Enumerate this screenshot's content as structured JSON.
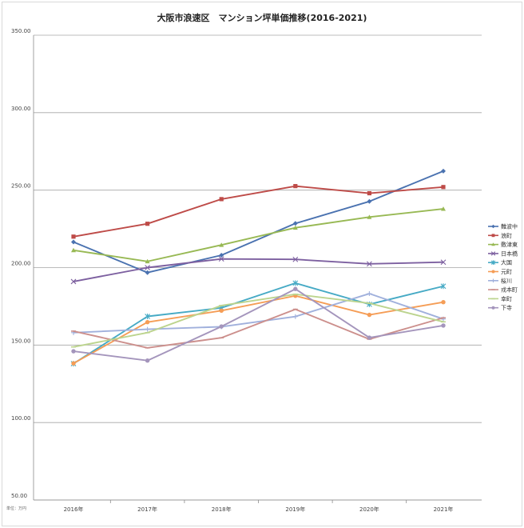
{
  "chart_data": {
    "type": "line",
    "title": "大阪市浪速区　マンション坪単価推移(2016-2021)",
    "unit_note": "単位：万円",
    "categories": [
      "2016年",
      "2017年",
      "2018年",
      "2019年",
      "2020年",
      "2021年"
    ],
    "ylim": [
      50,
      350
    ],
    "yticks": [
      "50.00",
      "100.00",
      "150.00",
      "200.00",
      "250.00",
      "300.00",
      "350.00"
    ],
    "ytick_values": [
      50,
      100,
      150,
      200,
      250,
      300,
      350
    ],
    "grid": true,
    "legend_position": "right",
    "series": [
      {
        "name": "難波中",
        "color": "#4a72b0",
        "marker": "diamond",
        "values": [
          216.5,
          196.8,
          208.0,
          228.5,
          242.7,
          262.3
        ]
      },
      {
        "name": "浪町",
        "color": "#be4b48",
        "marker": "square",
        "values": [
          220.0,
          228.3,
          244.2,
          252.6,
          248.0,
          252.0
        ]
      },
      {
        "name": "敷津東",
        "color": "#98b954",
        "marker": "triangle",
        "values": [
          211.2,
          204.0,
          214.6,
          225.7,
          232.6,
          237.9
        ]
      },
      {
        "name": "日本橋",
        "color": "#7d60a0",
        "marker": "x",
        "values": [
          191.0,
          200.0,
          205.6,
          205.3,
          202.4,
          203.5
        ]
      },
      {
        "name": "大国",
        "color": "#46aac5",
        "marker": "star",
        "values": [
          138.0,
          168.5,
          174.0,
          190.0,
          176.3,
          188.0
        ]
      },
      {
        "name": "元町",
        "color": "#f59d56",
        "marker": "circle",
        "values": [
          138.2,
          164.8,
          172.2,
          181.8,
          169.5,
          177.7
        ]
      },
      {
        "name": "桜川",
        "color": "#a0b0dc",
        "marker": "plus",
        "values": [
          158.0,
          160.2,
          161.8,
          168.4,
          183.2,
          166.8
        ]
      },
      {
        "name": "戎本町",
        "color": "#cc8f8c",
        "marker": "dash",
        "values": [
          159.0,
          148.2,
          154.7,
          173.1,
          153.8,
          167.6
        ]
      },
      {
        "name": "幸町",
        "color": "#bcd48e",
        "marker": "dash",
        "values": [
          148.8,
          158.0,
          175.5,
          182.8,
          177.0,
          165.0
        ]
      },
      {
        "name": "下寺",
        "color": "#a495bc",
        "marker": "circle",
        "values": [
          146.0,
          140.0,
          162.0,
          186.2,
          154.8,
          162.6
        ]
      }
    ]
  }
}
